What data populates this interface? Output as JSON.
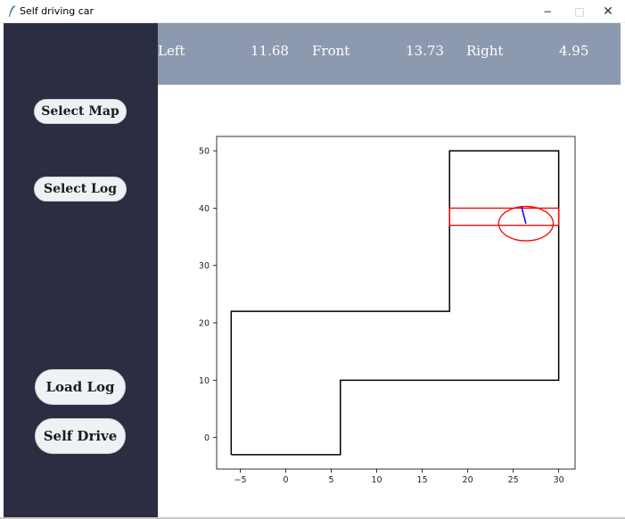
{
  "window": {
    "title": "Self driving car",
    "minimize_glyph": "−",
    "maximize_glyph": "□",
    "close_glyph": "✕"
  },
  "sidebar": {
    "background": "#2b2d42",
    "buttons": {
      "select_map": "Select Map",
      "select_log": "Select Log",
      "load_log": "Load Log",
      "self_drive": "Self Drive"
    }
  },
  "sensors": {
    "background": "#8d99ae",
    "left_label": "Left",
    "left_value": "11.68",
    "front_label": "Front",
    "front_value": "13.73",
    "right_label": "Right",
    "right_value": "4.95"
  },
  "chart_data": {
    "type": "line",
    "xlim": [
      -7.6,
      31.8
    ],
    "ylim": [
      -5.5,
      52.5
    ],
    "x_ticks": [
      -5,
      0,
      5,
      10,
      15,
      20,
      25,
      30
    ],
    "y_ticks": [
      0,
      10,
      20,
      30,
      40,
      50
    ],
    "x_tick_labels": [
      "−5",
      "0",
      "5",
      "10",
      "15",
      "20",
      "25",
      "30"
    ],
    "y_tick_labels": [
      "0",
      "10",
      "20",
      "30",
      "40",
      "50"
    ],
    "grid": false,
    "track": {
      "color": "#000000",
      "points": [
        [
          -6,
          -3
        ],
        [
          6,
          -3
        ],
        [
          6,
          10
        ],
        [
          30,
          10
        ],
        [
          30,
          50
        ],
        [
          18,
          50
        ],
        [
          18,
          22
        ],
        [
          -6,
          22
        ],
        [
          -6,
          -3
        ]
      ]
    },
    "finish_area": {
      "color": "#ff0000",
      "x": [
        18,
        30
      ],
      "y": [
        37,
        40
      ]
    },
    "car": {
      "color": "#ff0000",
      "center": [
        26.4,
        37.3
      ],
      "radius": 3,
      "heading_color": "#0000ff",
      "heading_end": [
        25.9,
        40.3
      ]
    }
  }
}
